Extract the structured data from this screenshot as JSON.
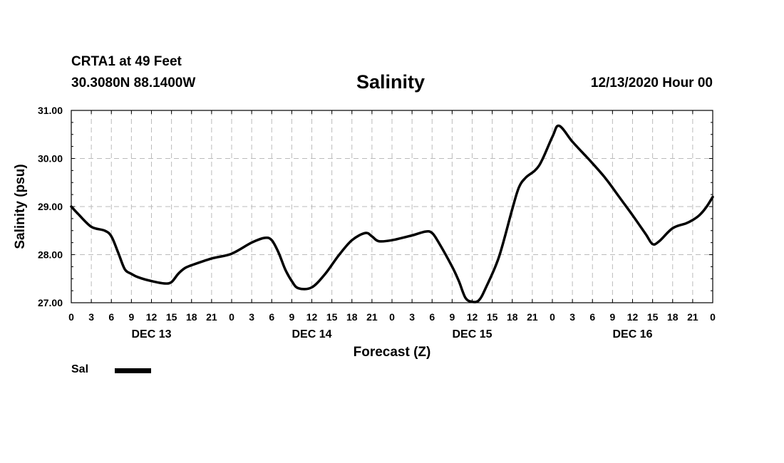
{
  "header": {
    "station": "CRTA1 at 49 Feet",
    "coords": "30.3080N 88.1400W",
    "title": "Salinity",
    "run": "12/13/2020 Hour 00"
  },
  "legend": {
    "label": "Sal",
    "color": "#000000"
  },
  "chart_data": {
    "type": "line",
    "title": "Salinity",
    "xlabel": "Forecast (Z)",
    "ylabel": "Salinity (psu)",
    "xlim": [
      0,
      96
    ],
    "ylim": [
      27.0,
      31.0
    ],
    "grid": true,
    "legend_position": "bottom-left",
    "y_ticks": [
      "27.00",
      "28.00",
      "29.00",
      "30.00",
      "31.00"
    ],
    "x_tick_labels": [
      "0",
      "3",
      "6",
      "9",
      "12",
      "15",
      "18",
      "21",
      "0",
      "3",
      "6",
      "9",
      "12",
      "15",
      "18",
      "21",
      "0",
      "3",
      "6",
      "9",
      "12",
      "15",
      "18",
      "21",
      "0",
      "3",
      "6",
      "9",
      "12",
      "15",
      "18",
      "21",
      "0"
    ],
    "day_labels": [
      "DEC 13",
      "DEC 14",
      "DEC 15",
      "DEC 16"
    ],
    "series": [
      {
        "name": "Sal",
        "x": [
          0,
          1,
          3,
          5,
          6,
          7,
          8,
          9,
          10,
          12,
          14,
          15,
          16,
          17,
          18,
          21,
          24,
          27,
          29,
          30,
          31,
          32,
          33,
          34,
          36,
          38,
          40,
          42,
          44,
          45,
          46,
          48,
          51,
          53,
          54,
          55,
          57,
          58,
          59,
          60,
          61,
          62,
          64,
          66,
          67,
          68,
          70,
          72,
          73,
          75,
          77,
          78,
          80,
          82,
          84,
          86,
          87,
          88,
          90,
          92,
          93,
          94,
          95,
          96
        ],
        "y": [
          29.0,
          28.85,
          28.58,
          28.5,
          28.38,
          28.05,
          27.7,
          27.6,
          27.53,
          27.45,
          27.4,
          27.43,
          27.6,
          27.72,
          27.78,
          27.92,
          28.02,
          28.25,
          28.35,
          28.3,
          28.05,
          27.7,
          27.45,
          27.3,
          27.32,
          27.6,
          27.98,
          28.3,
          28.45,
          28.38,
          28.28,
          28.3,
          28.4,
          28.48,
          28.45,
          28.25,
          27.75,
          27.45,
          27.1,
          27.02,
          27.05,
          27.3,
          27.95,
          28.95,
          29.4,
          29.6,
          29.85,
          30.45,
          30.68,
          30.35,
          30.05,
          29.9,
          29.58,
          29.2,
          28.82,
          28.42,
          28.22,
          28.28,
          28.55,
          28.65,
          28.72,
          28.82,
          28.98,
          29.2
        ]
      }
    ]
  }
}
